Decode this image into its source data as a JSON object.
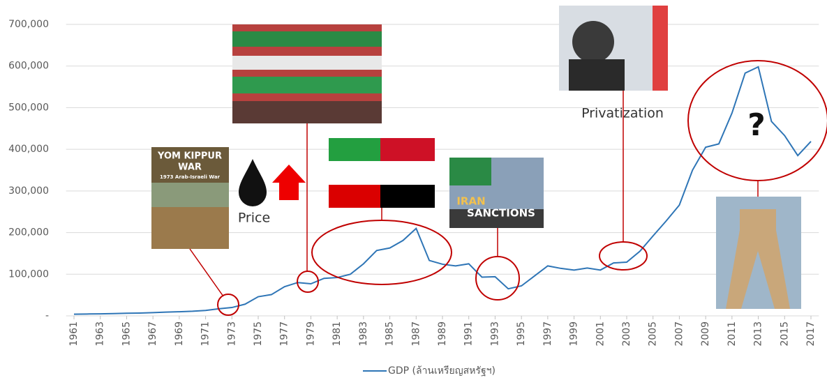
{
  "chart_data": {
    "type": "line",
    "x": [
      1961,
      1962,
      1963,
      1964,
      1965,
      1966,
      1967,
      1968,
      1969,
      1970,
      1971,
      1972,
      1973,
      1974,
      1975,
      1976,
      1977,
      1978,
      1979,
      1980,
      1981,
      1982,
      1983,
      1984,
      1985,
      1986,
      1987,
      1988,
      1989,
      1990,
      1991,
      1992,
      1993,
      1994,
      1995,
      1996,
      1997,
      1998,
      1999,
      2000,
      2001,
      2002,
      2003,
      2004,
      2005,
      2006,
      2007,
      2008,
      2009,
      2010,
      2011,
      2012,
      2013,
      2014,
      2015,
      2016,
      2017
    ],
    "series": [
      {
        "name": "GDP (ล้านเหรียญสหรัฐฯ)",
        "color": "#2e75b6",
        "values": [
          4000,
          4500,
          4800,
          5500,
          6200,
          6800,
          7700,
          8900,
          9900,
          11000,
          13000,
          17000,
          20000,
          28000,
          46000,
          51000,
          70000,
          80000,
          77000,
          90000,
          92000,
          100000,
          125000,
          157000,
          163000,
          181000,
          210000,
          133000,
          124000,
          120000,
          125000,
          93000,
          94000,
          65000,
          72000,
          96000,
          120000,
          114000,
          110000,
          115000,
          110000,
          127000,
          129000,
          155000,
          192000,
          228000,
          266000,
          350000,
          405000,
          413000,
          487000,
          583000,
          598000,
          467000,
          433000,
          385000,
          419000
        ]
      }
    ],
    "xlim": [
      1960.4,
      2017.6
    ],
    "xticks": [
      1961,
      1963,
      1965,
      1967,
      1969,
      1971,
      1973,
      1975,
      1977,
      1979,
      1981,
      1983,
      1985,
      1987,
      1989,
      1991,
      1993,
      1995,
      1997,
      1999,
      2001,
      2003,
      2005,
      2007,
      2009,
      2011,
      2013,
      2015,
      2017
    ],
    "ylim": [
      0,
      700000
    ],
    "yticks": [
      {
        "value": 0,
        "label": "-"
      },
      {
        "value": 100000,
        "label": "100,000"
      },
      {
        "value": 200000,
        "label": "200,000"
      },
      {
        "value": 300000,
        "label": "300,000"
      },
      {
        "value": 400000,
        "label": "400,000"
      },
      {
        "value": 500000,
        "label": "500,000"
      },
      {
        "value": 600000,
        "label": "600,000"
      },
      {
        "value": 700000,
        "label": "700,000"
      }
    ],
    "grid": true,
    "legend": "bottom",
    "annotations": [
      "YOM KIPPUR",
      "WAR",
      "1973 Arab-Israeli War",
      "Price",
      "IRAN",
      "SANCTIONS",
      "Privatization",
      "?"
    ]
  }
}
